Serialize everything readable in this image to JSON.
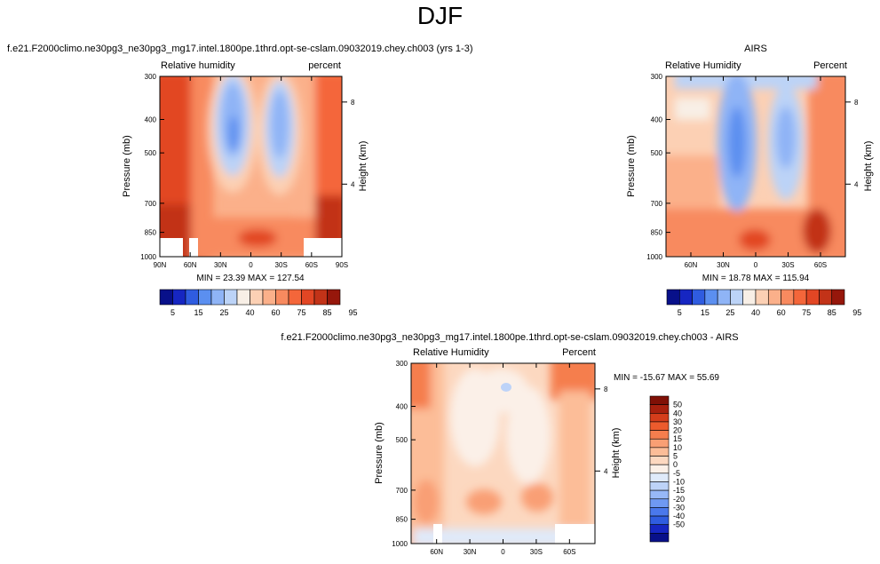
{
  "page": {
    "title": "DJF"
  },
  "colors": {
    "abs_scale": [
      "#08108a",
      "#1626c2",
      "#2f5ce0",
      "#5b8ff0",
      "#8fb4f6",
      "#bcd3f7",
      "#f8efe6",
      "#fcd0b4",
      "#fbb08a",
      "#f88a5f",
      "#f4663a",
      "#e24624",
      "#c23318",
      "#96170b"
    ],
    "diff_scale": [
      "#08108a",
      "#1626c2",
      "#2f5ce0",
      "#4a78ec",
      "#6f99f3",
      "#97b8f7",
      "#bdd3f8",
      "#dfeafa",
      "#fbf0e8",
      "#fcd8c0",
      "#fcbd98",
      "#f99f74",
      "#f57e4e",
      "#ec5b2d",
      "#d43d1b",
      "#a8200e",
      "#801006"
    ]
  },
  "chart_data": [
    {
      "type": "heatmap",
      "title": "f.e21.F2000climo.ne30pg3_ne30pg3_mg17.intel.1800pe.1thrd.opt-se-cslam.09032019.chey.ch003 (yrs 1-3)",
      "left_label": "Relative humidity",
      "right_label": "percent",
      "ylabel": "Pressure (mb)",
      "y2label": "Height (km)",
      "y_ticks": [
        "300",
        "400",
        "500",
        "700",
        "850",
        "1000"
      ],
      "y2_ticks": [
        "8",
        "4"
      ],
      "x_ticks": [
        "90N",
        "60N",
        "30N",
        "0",
        "30S",
        "60S",
        "90S"
      ],
      "stats": "MIN = 23.39  MAX = 127.54",
      "colorbar_labels": [
        "5",
        "15",
        "25",
        "40",
        "60",
        "75",
        "85",
        "95"
      ]
    },
    {
      "type": "heatmap",
      "title": "AIRS",
      "left_label": "Relative Humidity",
      "right_label": "Percent",
      "ylabel": "Pressure (mb)",
      "y2label": "Height (km)",
      "y_ticks": [
        "300",
        "400",
        "500",
        "700",
        "850",
        "1000"
      ],
      "y2_ticks": [
        "8",
        "4"
      ],
      "x_ticks": [
        "60N",
        "30N",
        "0",
        "30S",
        "60S"
      ],
      "stats": "MIN = 18.78  MAX = 115.94",
      "colorbar_labels": [
        "5",
        "15",
        "25",
        "40",
        "60",
        "75",
        "85",
        "95"
      ]
    },
    {
      "type": "heatmap",
      "title": "f.e21.F2000climo.ne30pg3_ne30pg3_mg17.intel.1800pe.1thrd.opt-se-cslam.09032019.chey.ch003 - AIRS",
      "left_label": "Relative Humidity",
      "right_label": "Percent",
      "ylabel": "Pressure (mb)",
      "y2label": "Height (km)",
      "y_ticks": [
        "300",
        "400",
        "500",
        "700",
        "850",
        "1000"
      ],
      "y2_ticks": [
        "8",
        "4"
      ],
      "x_ticks": [
        "60N",
        "30N",
        "0",
        "30S",
        "60S"
      ],
      "stats": "MIN = -15.67  MAX = 55.69",
      "colorbar_labels": [
        "50",
        "40",
        "30",
        "20",
        "15",
        "10",
        "5",
        "0",
        "-5",
        "-10",
        "-15",
        "-20",
        "-30",
        "-40",
        "-50"
      ]
    }
  ]
}
